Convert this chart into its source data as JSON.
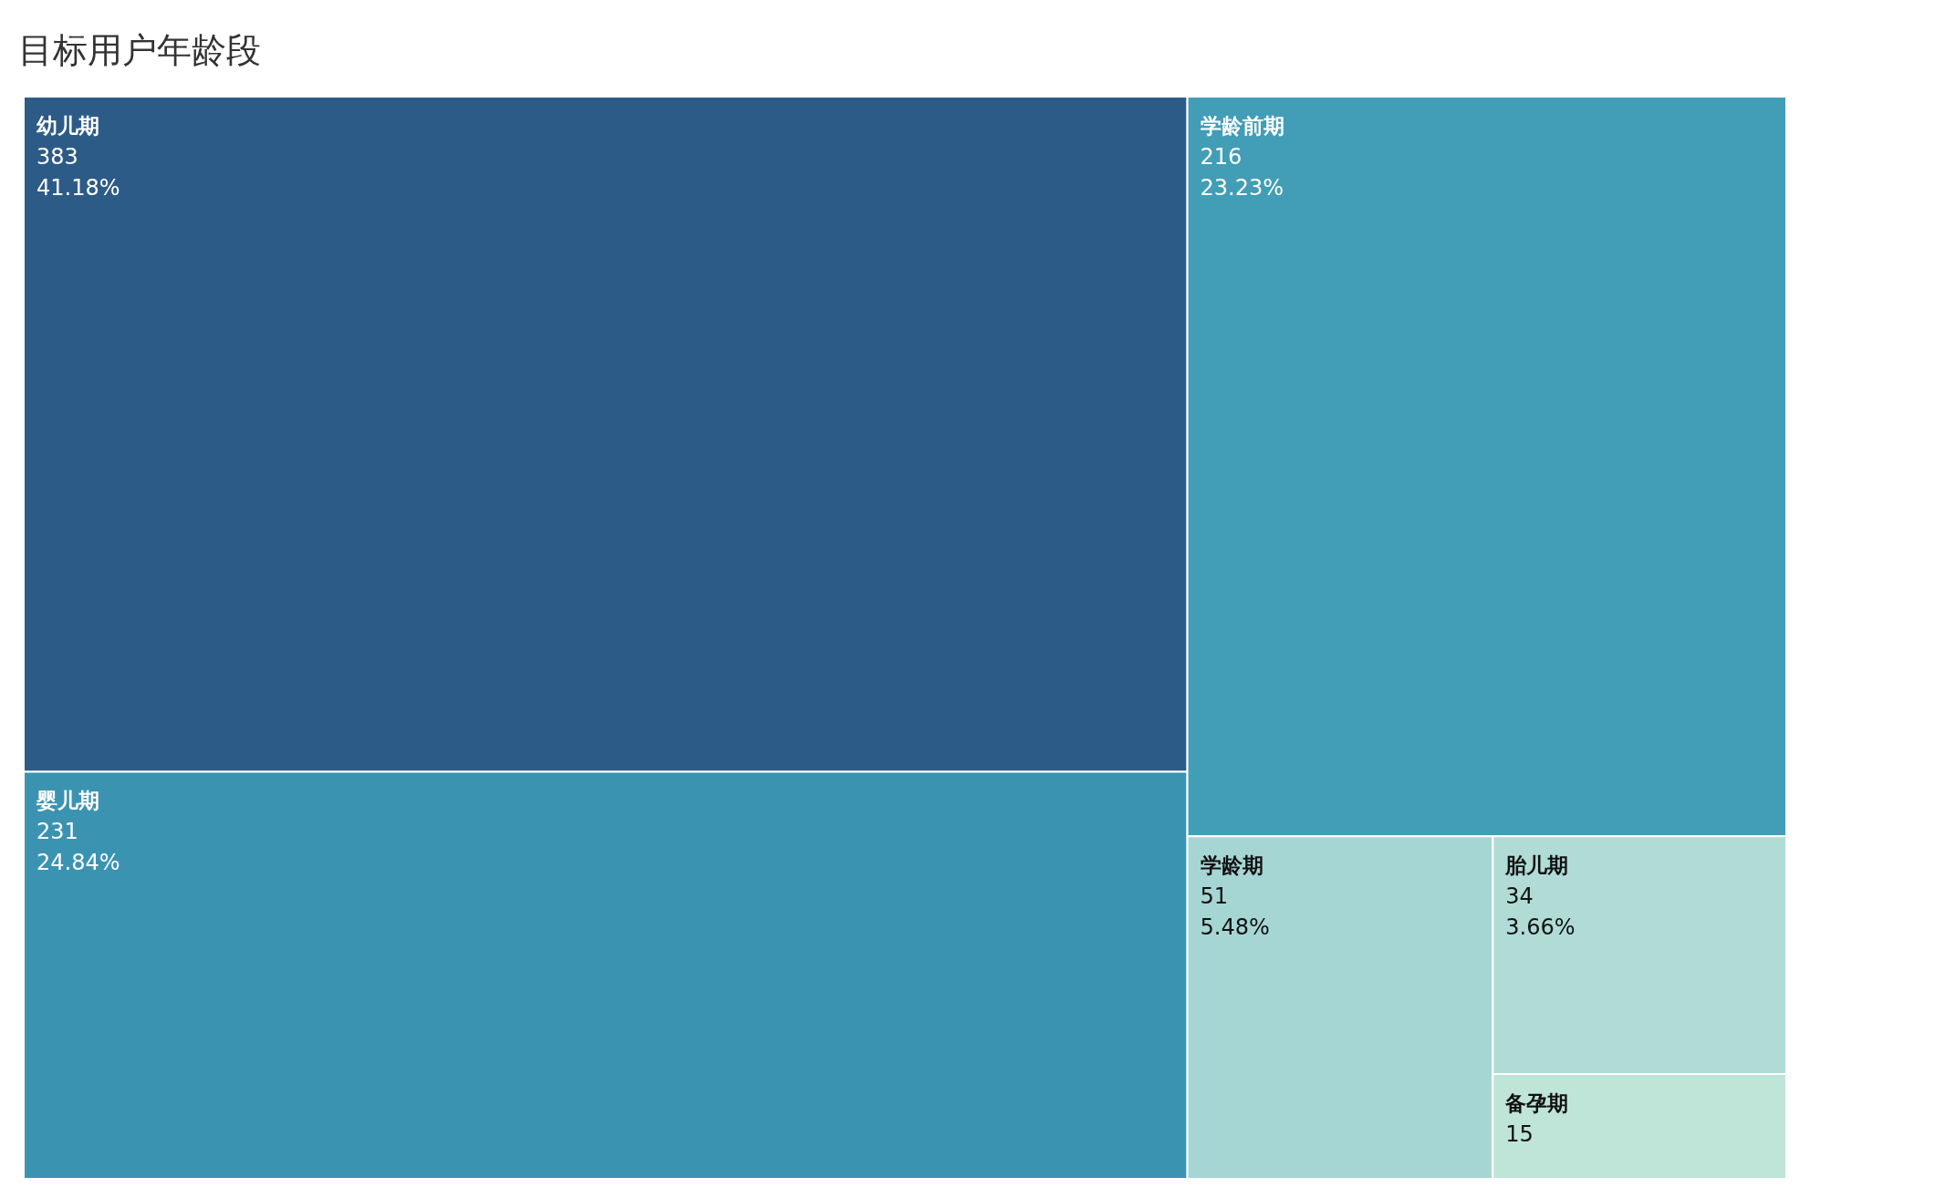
{
  "chart_data": {
    "type": "other",
    "title": "目标用户年龄段",
    "categories": [
      "幼儿期",
      "婴儿期",
      "学龄前期",
      "学龄期",
      "胎儿期",
      "备孕期"
    ],
    "values": [
      383,
      231,
      216,
      51,
      34,
      15
    ],
    "data_labels": true,
    "annotations": [
      {
        "text": "41.18%",
        "x": "幼儿期"
      },
      {
        "text": "24.84%",
        "x": "婴儿期"
      },
      {
        "text": "23.23%",
        "x": "学龄前期"
      },
      {
        "text": "5.48%",
        "x": "学龄期"
      },
      {
        "text": "3.66%",
        "x": "胎儿期"
      }
    ],
    "colors": [
      "#2d5b87",
      "#3b93b2",
      "#429db6",
      "#a6d6d4",
      "#b0dcd5",
      "#bfe5d8"
    ]
  }
}
